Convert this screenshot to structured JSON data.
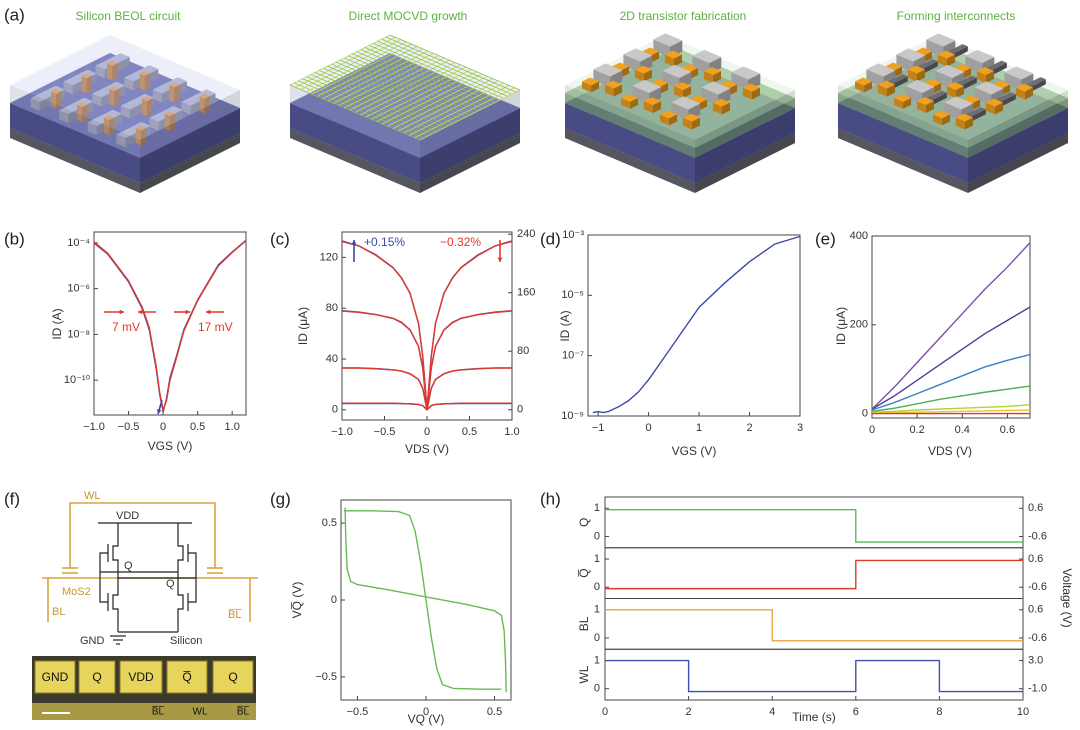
{
  "panel_a": {
    "panel_label": "(a)",
    "steps": [
      "Silicon BEOL circuit",
      "Direct MOCVD growth",
      "2D transistor fabrication",
      "Forming interconnects"
    ]
  },
  "panel_f": {
    "panel_label": "(f)",
    "schematic": {
      "wl": "WL",
      "vdd": "VDD",
      "q": "Q",
      "qbar": "Q̅",
      "mos2": "MoS2",
      "bl": "BL",
      "blbar": "B̅L̅",
      "gnd": "GND",
      "silicon": "Silicon"
    },
    "photo": [
      "GND",
      "Q",
      "VDD",
      "Q̅",
      "Q",
      "B̅L̅",
      "WL",
      "B̅L̅"
    ]
  },
  "chart_data": [
    {
      "panel_label": "(b)",
      "type": "line",
      "log_y": true,
      "xlabel": "VGS (V)",
      "ylabel": "ID (A)",
      "xlim": [
        -1,
        1.2
      ],
      "xticks": [
        {
          "value": -1,
          "label": "−1.0"
        },
        {
          "value": -0.5,
          "label": "−0.5"
        },
        0,
        0.5,
        {
          "value": 1,
          "label": "1.0"
        }
      ],
      "ylim": [
        3e-12,
        0.0003
      ],
      "yticks": [
        {
          "value": 1e-10,
          "label": "10⁻¹⁰"
        },
        {
          "value": 1e-08,
          "label": "10⁻⁸"
        },
        {
          "value": 1e-06,
          "label": "10⁻⁶"
        },
        {
          "value": 0.0001,
          "label": "10⁻⁴"
        }
      ],
      "x": [
        -1,
        -0.8,
        -0.5,
        -0.3,
        -0.2,
        -0.1,
        -0.05,
        0,
        0.05,
        0.1,
        0.2,
        0.3,
        0.5,
        0.8,
        1,
        1.2
      ],
      "series": [
        {
          "color": "#3b4aa8",
          "values": [
            0.0001,
            3.2e-05,
            2e-06,
            1.3e-07,
            1.6e-08,
            3.2e-10,
            2.5e-11,
            4e-12,
            1.6e-11,
            1.3e-10,
            1.3e-09,
            1.6e-08,
            3.2e-07,
            1.1e-05,
            4e-05,
            0.00013
          ]
        },
        {
          "color": "#e0392b",
          "values": [
            0.00011,
            3.5e-05,
            2.2e-06,
            1.5e-07,
            2e-08,
            4e-10,
            3e-11,
            5e-12,
            1.3e-11,
            1e-10,
            1.1e-09,
            1.4e-08,
            3e-07,
            1e-05,
            3.8e-05,
            0.000125
          ]
        }
      ],
      "annotations": [
        {
          "text": "7 mV",
          "color": "#e0392b"
        },
        {
          "text": "17 mV",
          "color": "#e0392b"
        }
      ]
    },
    {
      "panel_label": "(c)",
      "type": "line",
      "xlabel": "VDS (V)",
      "ylabel": "ID (μA)",
      "xlim": [
        -1,
        1
      ],
      "xticks": [
        {
          "value": -1,
          "label": "−1.0"
        },
        {
          "value": -0.5,
          "label": "−0.5"
        },
        0,
        0.5,
        {
          "value": 1,
          "label": "1.0"
        }
      ],
      "ylim": [
        -8,
        140
      ],
      "yticks": [
        0,
        40,
        80,
        120
      ],
      "y2lim": [
        -14,
        243
      ],
      "y2ticks": [
        0,
        80,
        160,
        240
      ],
      "x": [
        -1,
        -0.8,
        -0.6,
        -0.4,
        -0.3,
        -0.2,
        -0.1,
        -0.05,
        0,
        0.05,
        0.1,
        0.2,
        0.3,
        0.4,
        0.6,
        0.8,
        1
      ],
      "series": [
        {
          "color": "#3b4aa8",
          "values": [
            133,
            129,
            122,
            112,
            104,
            92,
            68,
            42,
            0,
            42,
            68,
            92,
            104,
            112,
            122,
            129,
            133
          ]
        },
        {
          "color": "#3b4aa8",
          "values": [
            78,
            77,
            75,
            72,
            69,
            63,
            50,
            33,
            0,
            33,
            50,
            63,
            69,
            72,
            75,
            77,
            78
          ]
        },
        {
          "color": "#3b4aa8",
          "values": [
            33,
            33,
            32.5,
            31.5,
            30.5,
            28.5,
            24,
            17,
            0,
            17,
            24,
            28.5,
            30.5,
            31.5,
            32.5,
            33,
            33
          ]
        },
        {
          "color": "#3b4aa8",
          "values": [
            5,
            5,
            5,
            5,
            4.9,
            4.7,
            4.2,
            3.3,
            0,
            3.3,
            4.2,
            4.7,
            4.9,
            5,
            5,
            5,
            5
          ]
        },
        {
          "color": "#e0392b",
          "axis": "y2",
          "values": [
            230,
            224,
            211,
            194,
            180,
            159,
            118,
            73,
            0,
            73,
            118,
            159,
            180,
            194,
            211,
            224,
            230
          ]
        },
        {
          "color": "#e0392b",
          "axis": "y2",
          "values": [
            135,
            133,
            130,
            125,
            119,
            109,
            87,
            57,
            0,
            57,
            87,
            109,
            119,
            125,
            130,
            133,
            135
          ]
        },
        {
          "color": "#e0392b",
          "axis": "y2",
          "values": [
            57,
            57,
            56,
            54.5,
            53,
            49,
            41.5,
            29,
            0,
            29,
            41.5,
            49,
            53,
            54.5,
            56,
            57,
            57
          ]
        },
        {
          "color": "#e0392b",
          "axis": "y2",
          "values": [
            9,
            9,
            9,
            9,
            8.5,
            8.1,
            7.3,
            5.7,
            0,
            5.7,
            7.3,
            8.1,
            8.5,
            9,
            9,
            9,
            9
          ]
        }
      ],
      "annotations": [
        {
          "text": "+0.15%",
          "color": "#3b4aa8"
        },
        {
          "text": "−0.32%",
          "color": "#e0392b"
        }
      ]
    },
    {
      "panel_label": "(d)",
      "type": "line",
      "log_y": true,
      "xlabel": "VGS (V)",
      "ylabel": "ID (A)",
      "xlim": [
        -1.2,
        3
      ],
      "xticks": [
        {
          "value": -1,
          "label": "−1"
        },
        0,
        1,
        2,
        3
      ],
      "ylim": [
        1e-09,
        0.001
      ],
      "yticks": [
        {
          "value": 1e-09,
          "label": "10⁻⁹"
        },
        {
          "value": 1e-07,
          "label": "10⁻⁷"
        },
        {
          "value": 1e-05,
          "label": "10⁻⁵"
        },
        {
          "value": 0.001,
          "label": "10⁻³"
        }
      ],
      "x": [
        -1.1,
        -1,
        -0.9,
        -0.8,
        -0.6,
        -0.4,
        -0.2,
        0,
        0.25,
        0.5,
        0.75,
        1,
        1.5,
        2,
        2.5,
        3
      ],
      "series": [
        {
          "color": "#3d4aa5",
          "values": [
            1.3e-09,
            1.4e-09,
            1.3e-09,
            1.4e-09,
            2e-09,
            3.2e-09,
            6.3e-09,
            1.6e-08,
            6.3e-08,
            2.5e-07,
            1e-06,
            4e-06,
            2.5e-05,
            0.00013,
            0.0005,
            0.0009
          ]
        }
      ]
    },
    {
      "panel_label": "(e)",
      "type": "line",
      "xlabel": "VDS (V)",
      "ylabel": "ID (μA)",
      "xlim": [
        0,
        0.7
      ],
      "xticks": [
        0,
        0.2,
        0.4,
        0.6
      ],
      "ylim": [
        -10,
        400
      ],
      "yticks": [
        0,
        200,
        400
      ],
      "x": [
        0,
        0.1,
        0.2,
        0.3,
        0.4,
        0.5,
        0.6,
        0.7
      ],
      "series": [
        {
          "color": "#7b4fa6",
          "values": [
            10,
            60,
            115,
            170,
            225,
            280,
            330,
            385
          ]
        },
        {
          "color": "#4a3f9a",
          "values": [
            10,
            40,
            75,
            110,
            145,
            180,
            210,
            240
          ]
        },
        {
          "color": "#3f7fc0",
          "values": [
            8,
            25,
            45,
            65,
            85,
            105,
            120,
            133
          ]
        },
        {
          "color": "#4caf4f",
          "values": [
            5,
            12,
            22,
            32,
            40,
            48,
            55,
            62
          ]
        },
        {
          "color": "#b5d334",
          "values": [
            3,
            5,
            8,
            10,
            12,
            14,
            16,
            20
          ]
        },
        {
          "color": "#f2c230",
          "values": [
            1,
            2,
            3,
            4,
            5,
            6,
            7,
            8
          ]
        },
        {
          "color": "#d83b2f",
          "values": [
            0,
            0,
            0,
            0,
            0,
            0,
            0,
            0
          ]
        }
      ]
    },
    {
      "panel_label": "(g)",
      "type": "line",
      "xlabel": "VQ (V)",
      "ylabel": "VQ̅ (V)",
      "xlim": [
        -0.62,
        0.62
      ],
      "xticks": [
        {
          "value": -0.5,
          "label": "−0.5"
        },
        0,
        0.5
      ],
      "ylim": [
        -0.65,
        0.65
      ],
      "yticks": [
        {
          "value": -0.5,
          "label": "−0.5"
        },
        0,
        0.5
      ],
      "series": [
        {
          "color": "#66bb55",
          "x": [
            -0.6,
            -0.4,
            -0.2,
            -0.12,
            -0.08,
            -0.04,
            0,
            0.04,
            0.08,
            0.12,
            0.2,
            0.4,
            0.55
          ],
          "values": [
            0.58,
            0.58,
            0.575,
            0.55,
            0.45,
            0.25,
            0,
            -0.25,
            -0.45,
            -0.55,
            -0.575,
            -0.58,
            -0.58
          ]
        },
        {
          "color": "#66bb55",
          "x": [
            -0.59,
            -0.585,
            -0.575,
            -0.55,
            -0.5,
            -0.3,
            0,
            0.3,
            0.5,
            0.55,
            0.57,
            0.58,
            0.585
          ],
          "values": [
            0.6,
            0.4,
            0.2,
            0.12,
            0.1,
            0.07,
            0.02,
            -0.03,
            -0.07,
            -0.1,
            -0.2,
            -0.4,
            -0.6
          ]
        }
      ]
    },
    {
      "panel_label": "(h)",
      "type": "stacked-line",
      "xlabel": "Time (s)",
      "y2label": "Voltage (V)",
      "xlim": [
        0,
        10
      ],
      "xticks": [
        0,
        2,
        4,
        6,
        8,
        10
      ],
      "panels": [
        {
          "ylabel": "Q",
          "color": "#5cb85c",
          "ylim": [
            -0.4,
            1.4
          ],
          "yticks": [
            0,
            1
          ],
          "y2lim": [
            -1.08,
            1.08
          ],
          "y2ticks": [
            -0.6,
            0.6
          ],
          "x": [
            0,
            6,
            6,
            10
          ],
          "values": [
            0.95,
            0.95,
            -0.2,
            -0.2
          ]
        },
        {
          "ylabel": "Q̅",
          "color": "#e0392b",
          "ylim": [
            -0.4,
            1.4
          ],
          "yticks": [
            0,
            1
          ],
          "y2lim": [
            -1.08,
            1.08
          ],
          "y2ticks": [
            -0.6,
            0.6
          ],
          "x": [
            0,
            6,
            6,
            10
          ],
          "values": [
            -0.05,
            -0.05,
            0.95,
            0.95
          ]
        },
        {
          "ylabel": "BL",
          "color": "#f0a43a",
          "ylim": [
            -0.4,
            1.4
          ],
          "yticks": [
            0,
            1
          ],
          "y2lim": [
            -1.08,
            1.08
          ],
          "y2ticks": [
            -0.6,
            0.6
          ],
          "x": [
            0,
            4,
            4,
            10
          ],
          "values": [
            1,
            1,
            -0.1,
            -0.1
          ]
        },
        {
          "ylabel": "WL",
          "color": "#4050b0",
          "ylim": [
            -0.4,
            1.4
          ],
          "yticks": [
            0,
            1
          ],
          "y2lim": [
            -2.6,
            4.6
          ],
          "y2ticks": [
            {
              "value": -1,
              "label": "-1.0"
            },
            {
              "value": 3,
              "label": "3.0"
            }
          ],
          "x": [
            0,
            2,
            2,
            6,
            6,
            8,
            8,
            10
          ],
          "values": [
            1,
            1,
            -0.1,
            -0.1,
            1,
            1,
            -0.1,
            -0.1
          ]
        }
      ]
    }
  ]
}
